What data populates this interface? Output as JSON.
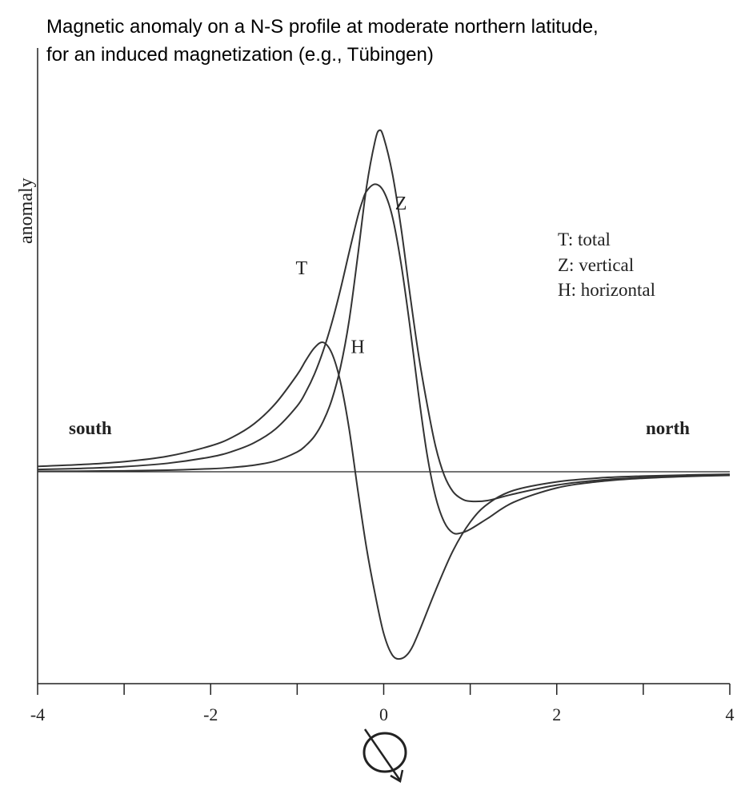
{
  "chart_data": {
    "type": "line",
    "title_lines": [
      "Magnetic anomaly on a N-S profile at moderate northern latitude,",
      "for an induced magnetization (e.g., Tübingen)"
    ],
    "xlabel": "",
    "ylabel": "anomaly",
    "xlim": [
      -4,
      4
    ],
    "ylim": [
      -0.55,
      1.05
    ],
    "x_ticks": [
      -4,
      -3,
      -2,
      -1,
      0,
      1,
      2,
      3,
      4
    ],
    "x_tick_labels": [
      "-4",
      "-2",
      "0",
      "2",
      "4"
    ],
    "x_tick_label_values": [
      -4,
      -2,
      0,
      2,
      4
    ],
    "grid": false,
    "zero_line": true,
    "series": [
      {
        "name": "T",
        "label_at": [
          -0.95,
          0.55
        ],
        "color": "#333333",
        "points": [
          [
            -4,
            0.0063
          ],
          [
            -3.5,
            0.0093
          ],
          [
            -3,
            0.0143
          ],
          [
            -2.5,
            0.0235
          ],
          [
            -2,
            0.0412
          ],
          [
            -1.75,
            0.0566
          ],
          [
            -1.5,
            0.0803
          ],
          [
            -1.25,
            0.119
          ],
          [
            -1,
            0.183
          ],
          [
            -0.9,
            0.222
          ],
          [
            -0.8,
            0.272
          ],
          [
            -0.7,
            0.336
          ],
          [
            -0.6,
            0.414
          ],
          [
            -0.5,
            0.507
          ],
          [
            -0.4,
            0.61
          ],
          [
            -0.3,
            0.71
          ],
          [
            -0.25,
            0.75
          ],
          [
            -0.2,
            0.78
          ],
          [
            -0.1,
            0.8
          ],
          [
            0,
            0.78
          ],
          [
            0.1,
            0.71
          ],
          [
            0.2,
            0.58
          ],
          [
            0.3,
            0.41
          ],
          [
            0.4,
            0.22
          ],
          [
            0.5,
            0.05
          ],
          [
            0.6,
            -0.07
          ],
          [
            0.7,
            -0.14
          ],
          [
            0.8,
            -0.17
          ],
          [
            0.9,
            -0.17
          ],
          [
            1,
            -0.16
          ],
          [
            1.2,
            -0.13
          ],
          [
            1.5,
            -0.085
          ],
          [
            2,
            -0.045
          ],
          [
            2.5,
            -0.027
          ],
          [
            3,
            -0.018
          ],
          [
            3.5,
            -0.013
          ],
          [
            4,
            -0.01
          ]
        ]
      },
      {
        "name": "Z",
        "label_at": [
          0.2,
          0.73
        ],
        "color": "#333333",
        "points": [
          [
            -4,
            0.0012
          ],
          [
            -3.5,
            0.0017
          ],
          [
            -3,
            0.0026
          ],
          [
            -2.5,
            0.0044
          ],
          [
            -2,
            0.0084
          ],
          [
            -1.75,
            0.0121
          ],
          [
            -1.5,
            0.0184
          ],
          [
            -1.25,
            0.0302
          ],
          [
            -1,
            0.055
          ],
          [
            -0.9,
            0.073
          ],
          [
            -0.8,
            0.099
          ],
          [
            -0.7,
            0.14
          ],
          [
            -0.6,
            0.2
          ],
          [
            -0.5,
            0.29
          ],
          [
            -0.4,
            0.42
          ],
          [
            -0.3,
            0.6
          ],
          [
            -0.2,
            0.79
          ],
          [
            -0.1,
            0.92
          ],
          [
            -0.05,
            0.95
          ],
          [
            0,
            0.93
          ],
          [
            0.1,
            0.83
          ],
          [
            0.2,
            0.68
          ],
          [
            0.3,
            0.5
          ],
          [
            0.4,
            0.33
          ],
          [
            0.5,
            0.19
          ],
          [
            0.6,
            0.07
          ],
          [
            0.7,
            -0.01
          ],
          [
            0.8,
            -0.055
          ],
          [
            0.9,
            -0.075
          ],
          [
            1,
            -0.082
          ],
          [
            1.2,
            -0.08
          ],
          [
            1.5,
            -0.062
          ],
          [
            2,
            -0.037
          ],
          [
            2.5,
            -0.023
          ],
          [
            3,
            -0.016
          ],
          [
            3.5,
            -0.011
          ],
          [
            4,
            -0.008
          ]
        ]
      },
      {
        "name": "H",
        "label_at": [
          -0.3,
          0.33
        ],
        "color": "#333333",
        "points": [
          [
            -4,
            0.015
          ],
          [
            -3.5,
            0.02
          ],
          [
            -3,
            0.028
          ],
          [
            -2.5,
            0.043
          ],
          [
            -2,
            0.072
          ],
          [
            -1.75,
            0.096
          ],
          [
            -1.5,
            0.133
          ],
          [
            -1.25,
            0.19
          ],
          [
            -1,
            0.27
          ],
          [
            -0.9,
            0.31
          ],
          [
            -0.8,
            0.345
          ],
          [
            -0.7,
            0.36
          ],
          [
            -0.6,
            0.33
          ],
          [
            -0.5,
            0.25
          ],
          [
            -0.4,
            0.12
          ],
          [
            -0.3,
            -0.05
          ],
          [
            -0.2,
            -0.21
          ],
          [
            -0.1,
            -0.34
          ],
          [
            0,
            -0.45
          ],
          [
            0.1,
            -0.51
          ],
          [
            0.2,
            -0.52
          ],
          [
            0.3,
            -0.5
          ],
          [
            0.4,
            -0.45
          ],
          [
            0.6,
            -0.33
          ],
          [
            0.8,
            -0.22
          ],
          [
            1,
            -0.14
          ],
          [
            1.2,
            -0.09
          ],
          [
            1.5,
            -0.052
          ],
          [
            2,
            -0.028
          ],
          [
            2.5,
            -0.017
          ],
          [
            3,
            -0.012
          ],
          [
            3.5,
            -0.009
          ],
          [
            4,
            -0.007
          ]
        ]
      }
    ],
    "legend": {
      "placement": "right",
      "entries": [
        "T: total",
        "Z: vertical",
        "H: horizontal"
      ]
    },
    "annotations": {
      "south": "south",
      "north": "north"
    },
    "symbol": "compass-arrow-icon"
  }
}
